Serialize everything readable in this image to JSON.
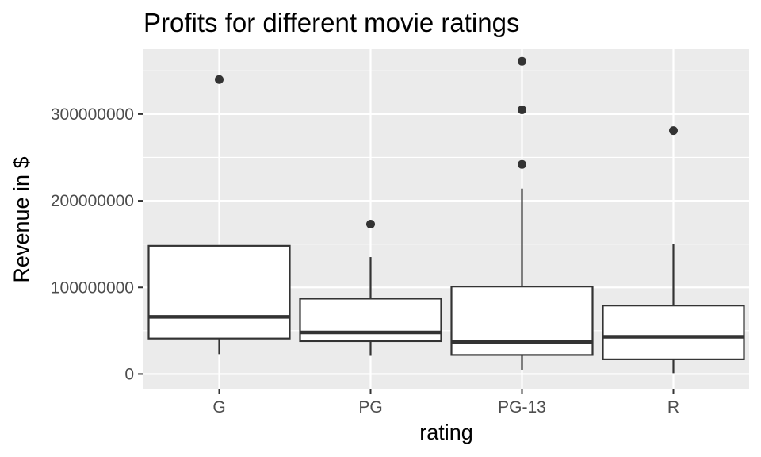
{
  "chart_data": {
    "type": "boxplot",
    "title": "Profits for different movie ratings",
    "xlabel": "rating",
    "ylabel": "Revenue in $",
    "ylim": [
      -17000000,
      375000000
    ],
    "yticks": [
      0,
      100000000,
      200000000,
      300000000
    ],
    "ytick_labels": [
      "0",
      "100000000",
      "200000000",
      "300000000"
    ],
    "categories": [
      "G",
      "PG",
      "PG-13",
      "R"
    ],
    "grid": true,
    "legend": "none",
    "colors": {
      "panel": "#ebebeb",
      "grid": "#ffffff",
      "box_fill": "#ffffff",
      "box_stroke": "#333333",
      "outlier": "#333333",
      "tick_text": "#4d4d4d"
    },
    "boxes": [
      {
        "category": "G",
        "whisker_low": 23000000,
        "q1": 41000000,
        "median": 66000000,
        "q3": 148000000,
        "whisker_high": 148000000,
        "outliers": [
          340000000
        ]
      },
      {
        "category": "PG",
        "whisker_low": 21000000,
        "q1": 38000000,
        "median": 48000000,
        "q3": 87000000,
        "whisker_high": 135000000,
        "outliers": [
          173000000
        ]
      },
      {
        "category": "PG-13",
        "whisker_low": 5000000,
        "q1": 22000000,
        "median": 37000000,
        "q3": 101000000,
        "whisker_high": 214000000,
        "outliers": [
          242000000,
          305000000,
          361000000
        ]
      },
      {
        "category": "R",
        "whisker_low": 1000000,
        "q1": 17000000,
        "median": 43000000,
        "q3": 79000000,
        "whisker_high": 150000000,
        "outliers": [
          281000000
        ]
      }
    ]
  }
}
